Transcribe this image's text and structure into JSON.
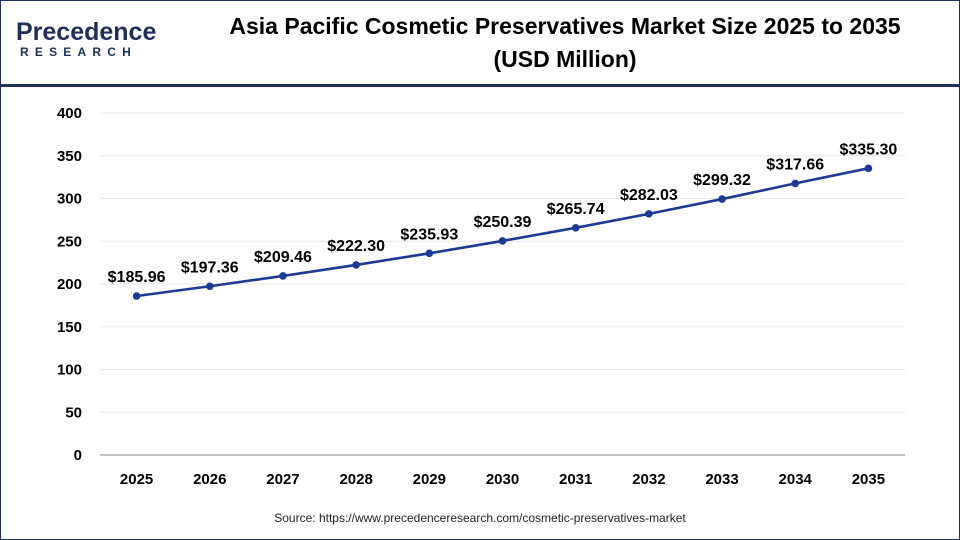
{
  "brand": {
    "logo_word": "Precedence",
    "logo_sub": "RESEARCH",
    "primary_color": "#1f2f5a",
    "accent_color": "#2a9fd8"
  },
  "title_line1": "Asia Pacific Cosmetic Preservatives Market Size 2025 to 2035",
  "title_line2": "(USD Million)",
  "source": "Source: https://www.precedenceresearch.com/cosmetic-preservatives-market",
  "chart_data": {
    "type": "line",
    "title": "Asia Pacific Cosmetic Preservatives Market Size 2025 to 2035 (USD Million)",
    "xlabel": "",
    "ylabel": "",
    "categories": [
      "2025",
      "2026",
      "2027",
      "2028",
      "2029",
      "2030",
      "2031",
      "2032",
      "2033",
      "2034",
      "2035"
    ],
    "values": [
      185.96,
      197.36,
      209.46,
      222.3,
      235.93,
      250.39,
      265.74,
      282.03,
      299.32,
      317.66,
      335.3
    ],
    "labels": [
      "$185.96",
      "$197.36",
      "$209.46",
      "$222.30",
      "$235.93",
      "$250.39",
      "$265.74",
      "$282.03",
      "$299.32",
      "$317.66",
      "$335.30"
    ],
    "ylim": [
      0,
      400
    ],
    "yticks": [
      0,
      50,
      100,
      150,
      200,
      250,
      300,
      350,
      400
    ],
    "grid": true,
    "legend": "none",
    "line_color": "#1f3a93"
  }
}
